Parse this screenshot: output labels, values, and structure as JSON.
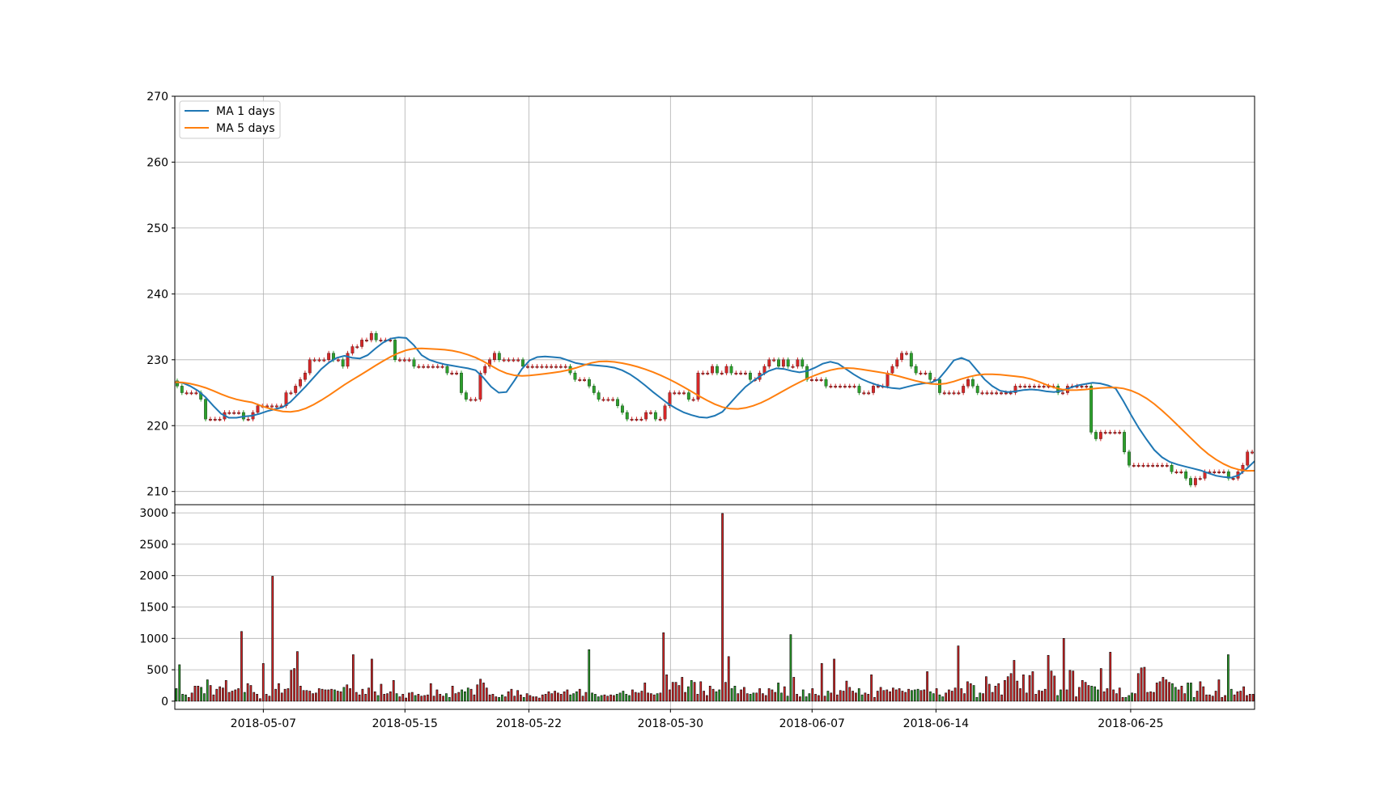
{
  "chart_data": [
    {
      "panel": "price",
      "type": "candlestick",
      "title": "",
      "xlabel": "",
      "ylabel": "",
      "ylim": [
        208,
        270
      ],
      "y_ticks": [
        "210",
        "220",
        "230",
        "240",
        "250",
        "260",
        "270"
      ],
      "x_ticks": [
        "2018-05-07",
        "2018-05-15",
        "2018-05-22",
        "2018-05-30",
        "2018-06-07",
        "2018-06-14",
        "2018-06-25"
      ],
      "x_range": [
        "2018-05-02",
        "2018-07-02"
      ],
      "grid": true,
      "legend": {
        "position": "upper-left",
        "entries": [
          {
            "label": "MA 1 days",
            "color": "#1f77b4"
          },
          {
            "label": "MA 5 days",
            "color": "#ff7f0e"
          }
        ]
      },
      "candle_colors": {
        "up": "#d62728",
        "down": "#2ca02c"
      },
      "closes": [
        226,
        225,
        225,
        225,
        225,
        224,
        221,
        221,
        221,
        221,
        222,
        222,
        222,
        222,
        221,
        221,
        222,
        223,
        223,
        223,
        223,
        223,
        223,
        225,
        225,
        226,
        227,
        228,
        230,
        230,
        230,
        230,
        231,
        230,
        230,
        229,
        231,
        232,
        232,
        233,
        233,
        234,
        233,
        233,
        233,
        233,
        230,
        230,
        230,
        230,
        229,
        229,
        229,
        229,
        229,
        229,
        229,
        228,
        228,
        228,
        225,
        224,
        224,
        224,
        228,
        229,
        230,
        231,
        230,
        230,
        230,
        230,
        230,
        229,
        229,
        229,
        229,
        229,
        229,
        229,
        229,
        229,
        229,
        228,
        227,
        227,
        227,
        226,
        225,
        224,
        224,
        224,
        224,
        223,
        222,
        221,
        221,
        221,
        221,
        222,
        222,
        221,
        221,
        223,
        225,
        225,
        225,
        225,
        224,
        224,
        228,
        228,
        228,
        229,
        228,
        228,
        229,
        228,
        228,
        228,
        228,
        227,
        227,
        228,
        229,
        230,
        230,
        229,
        230,
        229,
        229,
        230,
        229,
        227,
        227,
        227,
        227,
        226,
        226,
        226,
        226,
        226,
        226,
        226,
        225,
        225,
        225,
        226,
        226,
        226,
        228,
        229,
        230,
        231,
        231,
        229,
        228,
        228,
        228,
        227,
        227,
        225,
        225,
        225,
        225,
        225,
        226,
        227,
        226,
        225,
        225,
        225,
        225,
        225,
        225,
        225,
        225,
        226,
        226,
        226,
        226,
        226,
        226,
        226,
        226,
        226,
        225,
        225,
        226,
        226,
        226,
        226,
        226,
        219,
        218,
        219,
        219,
        219,
        219,
        219,
        216,
        214,
        214,
        214,
        214,
        214,
        214,
        214,
        214,
        214,
        213,
        213,
        213,
        212,
        211,
        212,
        212,
        213,
        213,
        213,
        213,
        213,
        212,
        212,
        213,
        214,
        216,
        216
      ],
      "ma_1": [
        226.6,
        226.5,
        226.0,
        225.3,
        224.3,
        223.0,
        221.8,
        221.2,
        221.2,
        221.4,
        221.5,
        221.8,
        222.2,
        222.5,
        222.8,
        223.6,
        224.8,
        226.0,
        227.3,
        228.6,
        229.6,
        230.3,
        230.6,
        230.3,
        230.2,
        230.7,
        231.7,
        232.6,
        233.2,
        233.4,
        233.3,
        232.2,
        230.7,
        230.0,
        229.6,
        229.3,
        229.1,
        228.9,
        228.7,
        228.4,
        227.3,
        225.9,
        225.0,
        225.1,
        226.8,
        228.6,
        229.9,
        230.4,
        230.5,
        230.4,
        230.3,
        229.9,
        229.5,
        229.3,
        229.2,
        229.1,
        229.0,
        228.8,
        228.4,
        227.8,
        227.0,
        226.1,
        225.1,
        224.2,
        223.3,
        222.6,
        222.0,
        221.6,
        221.3,
        221.2,
        221.5,
        222.1,
        223.4,
        224.7,
        225.9,
        226.8,
        227.6,
        228.3,
        228.7,
        228.6,
        228.3,
        228.1,
        228.3,
        228.8,
        229.4,
        229.7,
        229.4,
        228.6,
        227.8,
        227.1,
        226.6,
        226.2,
        225.9,
        225.7,
        225.6,
        225.9,
        226.2,
        226.4,
        226.5,
        227.0,
        228.4,
        229.9,
        230.3,
        229.8,
        228.4,
        227.0,
        226.0,
        225.3,
        225.1,
        225.2,
        225.4,
        225.5,
        225.4,
        225.2,
        225.1,
        225.3,
        225.7,
        226.1,
        226.3,
        226.5,
        226.4,
        226.1,
        225.6,
        223.7,
        221.6,
        219.6,
        217.9,
        216.3,
        215.2,
        214.5,
        214.1,
        213.8,
        213.5,
        213.2,
        212.8,
        212.4,
        212.2,
        212.1,
        212.5,
        213.5,
        214.6
      ]
    },
    {
      "panel": "volume",
      "type": "bar",
      "title": "",
      "xlabel": "",
      "ylabel": "",
      "ylim": [
        -130,
        3130
      ],
      "y_ticks": [
        "0",
        "500",
        "1000",
        "1500",
        "2000",
        "2500",
        "3000"
      ],
      "values": [
        200,
        580,
        110,
        100,
        60,
        130,
        240,
        240,
        220,
        120,
        340,
        250,
        100,
        190,
        230,
        210,
        330,
        140,
        160,
        180,
        200,
        1110,
        140,
        280,
        250,
        140,
        110,
        40,
        600,
        110,
        80,
        1990,
        190,
        280,
        130,
        190,
        200,
        490,
        520,
        790,
        240,
        170,
        170,
        160,
        120,
        130,
        200,
        190,
        180,
        180,
        190,
        180,
        160,
        150,
        220,
        260,
        200,
        740,
        140,
        100,
        190,
        110,
        210,
        670,
        150,
        90,
        270,
        110,
        120,
        150,
        330,
        120,
        70,
        110,
        50,
        130,
        140,
        90,
        110,
        80,
        90,
        100,
        280,
        80,
        180,
        110,
        80,
        120,
        60,
        240,
        120,
        140,
        180,
        150,
        210,
        190,
        100,
        260,
        350,
        290,
        210,
        100,
        110,
        70,
        60,
        100,
        70,
        150,
        190,
        80,
        170,
        100,
        60,
        120,
        90,
        70,
        70,
        50,
        100,
        110,
        150,
        120,
        160,
        130,
        110,
        150,
        180,
        100,
        120,
        150,
        190,
        80,
        140,
        820,
        130,
        110,
        70,
        90,
        100,
        80,
        100,
        90,
        110,
        130,
        160,
        110,
        90,
        180,
        140,
        130,
        160,
        290,
        130,
        120,
        100,
        120,
        130,
        1090,
        420,
        180,
        300,
        300,
        250,
        380,
        140,
        230,
        330,
        300,
        110,
        310,
        160,
        90,
        240,
        190,
        150,
        180,
        2990,
        300,
        710,
        200,
        240,
        120,
        180,
        220,
        120,
        110,
        130,
        130,
        200,
        120,
        90,
        200,
        180,
        140,
        290,
        130,
        230,
        80,
        1060,
        380,
        110,
        70,
        180,
        70,
        120,
        200,
        110,
        90,
        600,
        80,
        160,
        130,
        670,
        100,
        170,
        160,
        320,
        220,
        160,
        130,
        200,
        100,
        130,
        110,
        420,
        60,
        160,
        220,
        170,
        180,
        150,
        210,
        180,
        200,
        160,
        140,
        190,
        170,
        180,
        190,
        170,
        180,
        470,
        150,
        120,
        200,
        100,
        70,
        130,
        180,
        160,
        210,
        880,
        200,
        120,
        310,
        280,
        250,
        60,
        130,
        120,
        390,
        270,
        140,
        240,
        280,
        100,
        330,
        390,
        440,
        650,
        320,
        200,
        420,
        130,
        410,
        470,
        110,
        170,
        160,
        190,
        730,
        480,
        400,
        90,
        180,
        1000,
        180,
        490,
        480,
        70,
        220,
        330,
        300,
        250,
        240,
        230,
        180,
        520,
        150,
        200,
        780,
        180,
        120,
        210,
        60,
        60,
        90,
        130,
        120,
        440,
        530,
        540,
        140,
        150,
        140,
        290,
        310,
        380,
        340,
        300,
        280,
        220,
        180,
        240,
        120,
        290,
        290,
        60,
        160,
        310,
        230,
        100,
        100,
        80,
        160,
        340,
        60,
        90,
        740,
        190,
        100,
        150,
        160,
        230,
        90,
        110,
        110
      ]
    }
  ]
}
